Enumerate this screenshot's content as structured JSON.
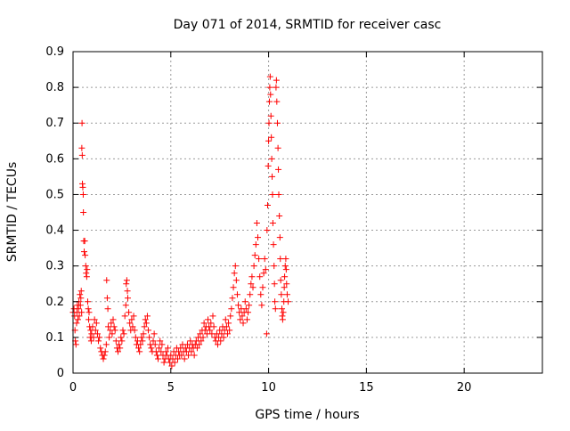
{
  "chart_data": {
    "type": "scatter",
    "title": "Day 071 of 2014, SRMTID for receiver casc",
    "xlabel": "GPS time / hours",
    "ylabel": "SRMTID / TECUs",
    "xlim": [
      0,
      24
    ],
    "ylim": [
      0,
      0.9
    ],
    "xticks": [
      0,
      5,
      10,
      15,
      20
    ],
    "xtick_labels": [
      "0",
      "5",
      "10",
      "15",
      "20"
    ],
    "yticks": [
      0,
      0.1,
      0.2,
      0.3,
      0.4,
      0.5,
      0.6,
      0.7,
      0.8,
      0.9
    ],
    "ytick_labels": [
      "0",
      "0.1",
      "0.2",
      "0.3",
      "0.4",
      "0.5",
      "0.6",
      "0.7",
      "0.8",
      "0.9"
    ],
    "grid": true,
    "marker": "plus",
    "color": "#ff0000",
    "series": [
      {
        "name": "casc",
        "points": [
          [
            0.0,
            0.17
          ],
          [
            0.05,
            0.18
          ],
          [
            0.08,
            0.16
          ],
          [
            0.1,
            0.12
          ],
          [
            0.12,
            0.09
          ],
          [
            0.15,
            0.08
          ],
          [
            0.18,
            0.14
          ],
          [
            0.2,
            0.17
          ],
          [
            0.22,
            0.19
          ],
          [
            0.25,
            0.15
          ],
          [
            0.28,
            0.18
          ],
          [
            0.3,
            0.2
          ],
          [
            0.32,
            0.16
          ],
          [
            0.35,
            0.22
          ],
          [
            0.38,
            0.19
          ],
          [
            0.4,
            0.21
          ],
          [
            0.42,
            0.23
          ],
          [
            0.44,
            0.17
          ],
          [
            0.45,
            0.63
          ],
          [
            0.46,
            0.7
          ],
          [
            0.47,
            0.61
          ],
          [
            0.48,
            0.53
          ],
          [
            0.5,
            0.52
          ],
          [
            0.52,
            0.5
          ],
          [
            0.53,
            0.45
          ],
          [
            0.55,
            0.37
          ],
          [
            0.57,
            0.34
          ],
          [
            0.6,
            0.37
          ],
          [
            0.62,
            0.33
          ],
          [
            0.65,
            0.3
          ],
          [
            0.67,
            0.28
          ],
          [
            0.7,
            0.27
          ],
          [
            0.72,
            0.29
          ],
          [
            0.75,
            0.2
          ],
          [
            0.78,
            0.18
          ],
          [
            0.8,
            0.15
          ],
          [
            0.82,
            0.17
          ],
          [
            0.85,
            0.13
          ],
          [
            0.88,
            0.1
          ],
          [
            0.9,
            0.12
          ],
          [
            0.93,
            0.09
          ],
          [
            0.95,
            0.11
          ],
          [
            1.0,
            0.13
          ],
          [
            1.05,
            0.1
          ],
          [
            1.1,
            0.15
          ],
          [
            1.15,
            0.12
          ],
          [
            1.2,
            0.14
          ],
          [
            1.25,
            0.11
          ],
          [
            1.3,
            0.09
          ],
          [
            1.35,
            0.1
          ],
          [
            1.4,
            0.07
          ],
          [
            1.45,
            0.06
          ],
          [
            1.5,
            0.05
          ],
          [
            1.55,
            0.04
          ],
          [
            1.6,
            0.05
          ],
          [
            1.65,
            0.06
          ],
          [
            1.7,
            0.08
          ],
          [
            1.72,
            0.26
          ],
          [
            1.75,
            0.21
          ],
          [
            1.78,
            0.18
          ],
          [
            1.8,
            0.13
          ],
          [
            1.85,
            0.1
          ],
          [
            1.9,
            0.12
          ],
          [
            1.95,
            0.14
          ],
          [
            2.0,
            0.11
          ],
          [
            2.05,
            0.15
          ],
          [
            2.1,
            0.13
          ],
          [
            2.15,
            0.12
          ],
          [
            2.2,
            0.09
          ],
          [
            2.25,
            0.07
          ],
          [
            2.3,
            0.06
          ],
          [
            2.35,
            0.08
          ],
          [
            2.4,
            0.07
          ],
          [
            2.45,
            0.1
          ],
          [
            2.5,
            0.09
          ],
          [
            2.55,
            0.12
          ],
          [
            2.6,
            0.11
          ],
          [
            2.65,
            0.16
          ],
          [
            2.7,
            0.19
          ],
          [
            2.72,
            0.25
          ],
          [
            2.75,
            0.26
          ],
          [
            2.78,
            0.23
          ],
          [
            2.8,
            0.21
          ],
          [
            2.85,
            0.17
          ],
          [
            2.9,
            0.14
          ],
          [
            2.95,
            0.12
          ],
          [
            3.0,
            0.15
          ],
          [
            3.05,
            0.13
          ],
          [
            3.1,
            0.16
          ],
          [
            3.15,
            0.12
          ],
          [
            3.2,
            0.1
          ],
          [
            3.25,
            0.08
          ],
          [
            3.3,
            0.09
          ],
          [
            3.35,
            0.07
          ],
          [
            3.4,
            0.06
          ],
          [
            3.45,
            0.08
          ],
          [
            3.5,
            0.1
          ],
          [
            3.55,
            0.09
          ],
          [
            3.6,
            0.11
          ],
          [
            3.65,
            0.13
          ],
          [
            3.7,
            0.15
          ],
          [
            3.75,
            0.14
          ],
          [
            3.8,
            0.16
          ],
          [
            3.85,
            0.12
          ],
          [
            3.9,
            0.1
          ],
          [
            3.95,
            0.08
          ],
          [
            4.0,
            0.07
          ],
          [
            4.05,
            0.06
          ],
          [
            4.1,
            0.09
          ],
          [
            4.15,
            0.11
          ],
          [
            4.2,
            0.08
          ],
          [
            4.25,
            0.06
          ],
          [
            4.3,
            0.05
          ],
          [
            4.35,
            0.04
          ],
          [
            4.4,
            0.07
          ],
          [
            4.45,
            0.09
          ],
          [
            4.5,
            0.06
          ],
          [
            4.55,
            0.08
          ],
          [
            4.6,
            0.05
          ],
          [
            4.65,
            0.03
          ],
          [
            4.7,
            0.04
          ],
          [
            4.75,
            0.06
          ],
          [
            4.8,
            0.05
          ],
          [
            4.85,
            0.07
          ],
          [
            4.9,
            0.04
          ],
          [
            4.95,
            0.03
          ],
          [
            5.0,
            0.05
          ],
          [
            5.05,
            0.02
          ],
          [
            5.1,
            0.04
          ],
          [
            5.15,
            0.06
          ],
          [
            5.2,
            0.03
          ],
          [
            5.25,
            0.05
          ],
          [
            5.3,
            0.07
          ],
          [
            5.35,
            0.04
          ],
          [
            5.4,
            0.06
          ],
          [
            5.45,
            0.05
          ],
          [
            5.5,
            0.07
          ],
          [
            5.55,
            0.05
          ],
          [
            5.6,
            0.08
          ],
          [
            5.65,
            0.06
          ],
          [
            5.7,
            0.04
          ],
          [
            5.75,
            0.07
          ],
          [
            5.8,
            0.06
          ],
          [
            5.85,
            0.08
          ],
          [
            5.9,
            0.05
          ],
          [
            5.95,
            0.07
          ],
          [
            6.0,
            0.09
          ],
          [
            6.05,
            0.06
          ],
          [
            6.1,
            0.08
          ],
          [
            6.15,
            0.07
          ],
          [
            6.2,
            0.05
          ],
          [
            6.25,
            0.08
          ],
          [
            6.3,
            0.09
          ],
          [
            6.35,
            0.07
          ],
          [
            6.4,
            0.1
          ],
          [
            6.45,
            0.08
          ],
          [
            6.5,
            0.11
          ],
          [
            6.55,
            0.09
          ],
          [
            6.6,
            0.12
          ],
          [
            6.65,
            0.1
          ],
          [
            6.7,
            0.14
          ],
          [
            6.75,
            0.12
          ],
          [
            6.8,
            0.13
          ],
          [
            6.85,
            0.11
          ],
          [
            6.9,
            0.15
          ],
          [
            6.95,
            0.13
          ],
          [
            7.0,
            0.12
          ],
          [
            7.05,
            0.14
          ],
          [
            7.1,
            0.11
          ],
          [
            7.15,
            0.16
          ],
          [
            7.2,
            0.13
          ],
          [
            7.25,
            0.1
          ],
          [
            7.3,
            0.09
          ],
          [
            7.35,
            0.11
          ],
          [
            7.4,
            0.08
          ],
          [
            7.45,
            0.1
          ],
          [
            7.5,
            0.12
          ],
          [
            7.55,
            0.09
          ],
          [
            7.6,
            0.11
          ],
          [
            7.65,
            0.13
          ],
          [
            7.7,
            0.1
          ],
          [
            7.75,
            0.12
          ],
          [
            7.8,
            0.15
          ],
          [
            7.85,
            0.13
          ],
          [
            7.9,
            0.11
          ],
          [
            7.95,
            0.14
          ],
          [
            8.0,
            0.12
          ],
          [
            8.05,
            0.16
          ],
          [
            8.1,
            0.18
          ],
          [
            8.15,
            0.21
          ],
          [
            8.2,
            0.24
          ],
          [
            8.25,
            0.28
          ],
          [
            8.3,
            0.3
          ],
          [
            8.35,
            0.26
          ],
          [
            8.4,
            0.22
          ],
          [
            8.45,
            0.19
          ],
          [
            8.5,
            0.17
          ],
          [
            8.55,
            0.15
          ],
          [
            8.6,
            0.18
          ],
          [
            8.65,
            0.16
          ],
          [
            8.7,
            0.14
          ],
          [
            8.75,
            0.17
          ],
          [
            8.8,
            0.2
          ],
          [
            8.85,
            0.18
          ],
          [
            8.9,
            0.15
          ],
          [
            8.95,
            0.17
          ],
          [
            9.0,
            0.19
          ],
          [
            9.05,
            0.22
          ],
          [
            9.1,
            0.25
          ],
          [
            9.15,
            0.27
          ],
          [
            9.2,
            0.24
          ],
          [
            9.25,
            0.3
          ],
          [
            9.3,
            0.33
          ],
          [
            9.35,
            0.36
          ],
          [
            9.4,
            0.42
          ],
          [
            9.45,
            0.38
          ],
          [
            9.5,
            0.32
          ],
          [
            9.55,
            0.27
          ],
          [
            9.6,
            0.22
          ],
          [
            9.65,
            0.19
          ],
          [
            9.7,
            0.24
          ],
          [
            9.75,
            0.28
          ],
          [
            9.8,
            0.32
          ],
          [
            9.85,
            0.29
          ],
          [
            9.9,
            0.11
          ],
          [
            9.92,
            0.4
          ],
          [
            9.95,
            0.47
          ],
          [
            9.98,
            0.58
          ],
          [
            10.0,
            0.65
          ],
          [
            10.02,
            0.7
          ],
          [
            10.04,
            0.76
          ],
          [
            10.06,
            0.8
          ],
          [
            10.08,
            0.83
          ],
          [
            10.1,
            0.78
          ],
          [
            10.12,
            0.72
          ],
          [
            10.14,
            0.66
          ],
          [
            10.16,
            0.6
          ],
          [
            10.18,
            0.55
          ],
          [
            10.2,
            0.5
          ],
          [
            10.22,
            0.42
          ],
          [
            10.25,
            0.36
          ],
          [
            10.28,
            0.3
          ],
          [
            10.3,
            0.25
          ],
          [
            10.32,
            0.2
          ],
          [
            10.35,
            0.18
          ],
          [
            10.38,
            0.8
          ],
          [
            10.4,
            0.82
          ],
          [
            10.42,
            0.76
          ],
          [
            10.45,
            0.7
          ],
          [
            10.48,
            0.63
          ],
          [
            10.5,
            0.57
          ],
          [
            10.52,
            0.5
          ],
          [
            10.55,
            0.44
          ],
          [
            10.58,
            0.38
          ],
          [
            10.6,
            0.32
          ],
          [
            10.62,
            0.26
          ],
          [
            10.65,
            0.22
          ],
          [
            10.68,
            0.18
          ],
          [
            10.7,
            0.16
          ],
          [
            10.72,
            0.15
          ],
          [
            10.75,
            0.17
          ],
          [
            10.78,
            0.2
          ],
          [
            10.8,
            0.24
          ],
          [
            10.82,
            0.27
          ],
          [
            10.85,
            0.3
          ],
          [
            10.88,
            0.32
          ],
          [
            10.9,
            0.29
          ],
          [
            10.92,
            0.25
          ],
          [
            10.95,
            0.22
          ],
          [
            11.0,
            0.2
          ]
        ]
      }
    ]
  }
}
